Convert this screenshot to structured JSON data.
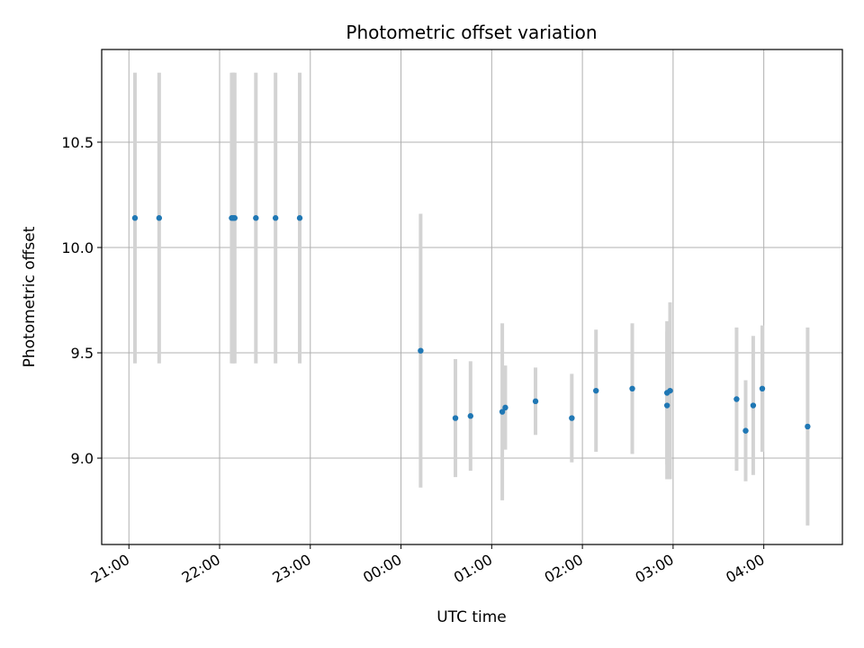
{
  "chart_data": {
    "type": "scatter",
    "title": "Photometric offset variation",
    "xlabel": "UTC time",
    "ylabel": "Photometric offset",
    "x_axis_kind": "time",
    "xlim": [
      "20:42",
      "04:52"
    ],
    "ylim": [
      8.59,
      10.94
    ],
    "x_ticks": [
      "21:00",
      "22:00",
      "23:00",
      "00:00",
      "01:00",
      "02:00",
      "03:00",
      "04:00"
    ],
    "y_ticks": [
      9.0,
      9.5,
      10.0,
      10.5
    ],
    "y_tick_labels": [
      "9.0",
      "9.5",
      "10.0",
      "10.5"
    ],
    "grid": true,
    "colors": {
      "points": "#1f77b4",
      "errorbars": "#d3d3d3",
      "grid": "#b0b0b0",
      "axes": "#000000"
    },
    "points": [
      {
        "x": "21:04",
        "y": 10.14,
        "err": 0.69
      },
      {
        "x": "21:20",
        "y": 10.14,
        "err": 0.69
      },
      {
        "x": "22:08",
        "y": 10.14,
        "err": 0.69
      },
      {
        "x": "22:09",
        "y": 10.14,
        "err": 0.69
      },
      {
        "x": "22:10",
        "y": 10.14,
        "err": 0.69
      },
      {
        "x": "22:24",
        "y": 10.14,
        "err": 0.69
      },
      {
        "x": "22:37",
        "y": 10.14,
        "err": 0.69
      },
      {
        "x": "22:53",
        "y": 10.14,
        "err": 0.69
      },
      {
        "x": "00:13",
        "y": 9.51,
        "err": 0.65
      },
      {
        "x": "00:36",
        "y": 9.19,
        "err": 0.28
      },
      {
        "x": "00:46",
        "y": 9.2,
        "err": 0.26
      },
      {
        "x": "01:07",
        "y": 9.22,
        "err": 0.42
      },
      {
        "x": "01:09",
        "y": 9.24,
        "err": 0.2
      },
      {
        "x": "01:29",
        "y": 9.27,
        "err": 0.16
      },
      {
        "x": "01:53",
        "y": 9.19,
        "err": 0.21
      },
      {
        "x": "02:09",
        "y": 9.32,
        "err": 0.29
      },
      {
        "x": "02:33",
        "y": 9.33,
        "err": 0.31
      },
      {
        "x": "02:56",
        "y": 9.25,
        "err": 0.35
      },
      {
        "x": "02:56",
        "y": 9.31,
        "err": 0.34
      },
      {
        "x": "02:58",
        "y": 9.32,
        "err": 0.42
      },
      {
        "x": "03:42",
        "y": 9.28,
        "err": 0.34
      },
      {
        "x": "03:48",
        "y": 9.13,
        "err": 0.24
      },
      {
        "x": "03:53",
        "y": 9.25,
        "err": 0.33
      },
      {
        "x": "03:59",
        "y": 9.33,
        "err": 0.3
      },
      {
        "x": "04:29",
        "y": 9.15,
        "err": 0.47
      }
    ]
  }
}
